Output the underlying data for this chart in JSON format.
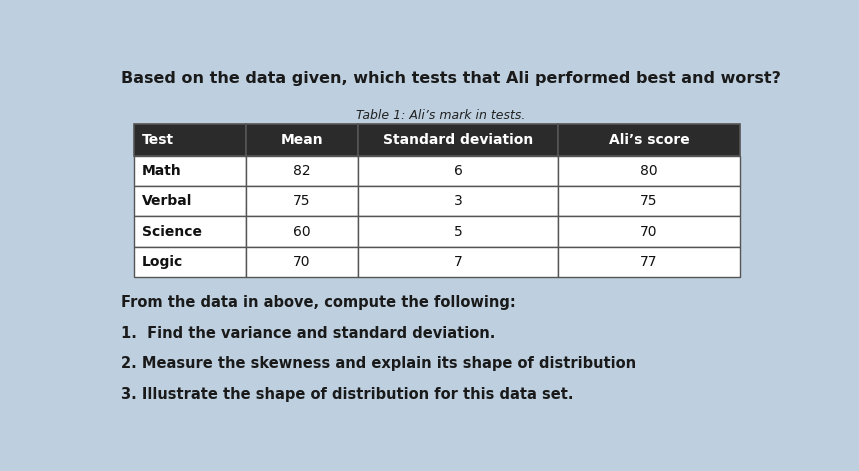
{
  "title_text": "Based on the data given, which tests that Ali performed best and worst?",
  "table_title": "Table 1: Ali’s mark in tests.",
  "headers": [
    "Test",
    "Mean",
    "Standard deviation",
    "Ali’s score"
  ],
  "rows": [
    [
      "Math",
      "82",
      "6",
      "80"
    ],
    [
      "Verbal",
      "75",
      "3",
      "75"
    ],
    [
      "Science",
      "60",
      "5",
      "70"
    ],
    [
      "Logic",
      "70",
      "7",
      "77"
    ]
  ],
  "header_bg": "#2b2b2b",
  "header_text_color": "#ffffff",
  "row_bg": "#ffffff",
  "row_text_color": "#111111",
  "border_color": "#555555",
  "background_color": "#bed0e0",
  "body_texts": [
    "From the data in above, compute the following:",
    "1.  Find the variance and standard deviation.",
    "2. Measure the skewness and explain its shape of distribution",
    "3. Illustrate the shape of distribution for this data set."
  ],
  "title_fontsize": 11.5,
  "table_title_fontsize": 9,
  "header_fontsize": 10,
  "row_fontsize": 10,
  "body_fontsize": 10.5
}
